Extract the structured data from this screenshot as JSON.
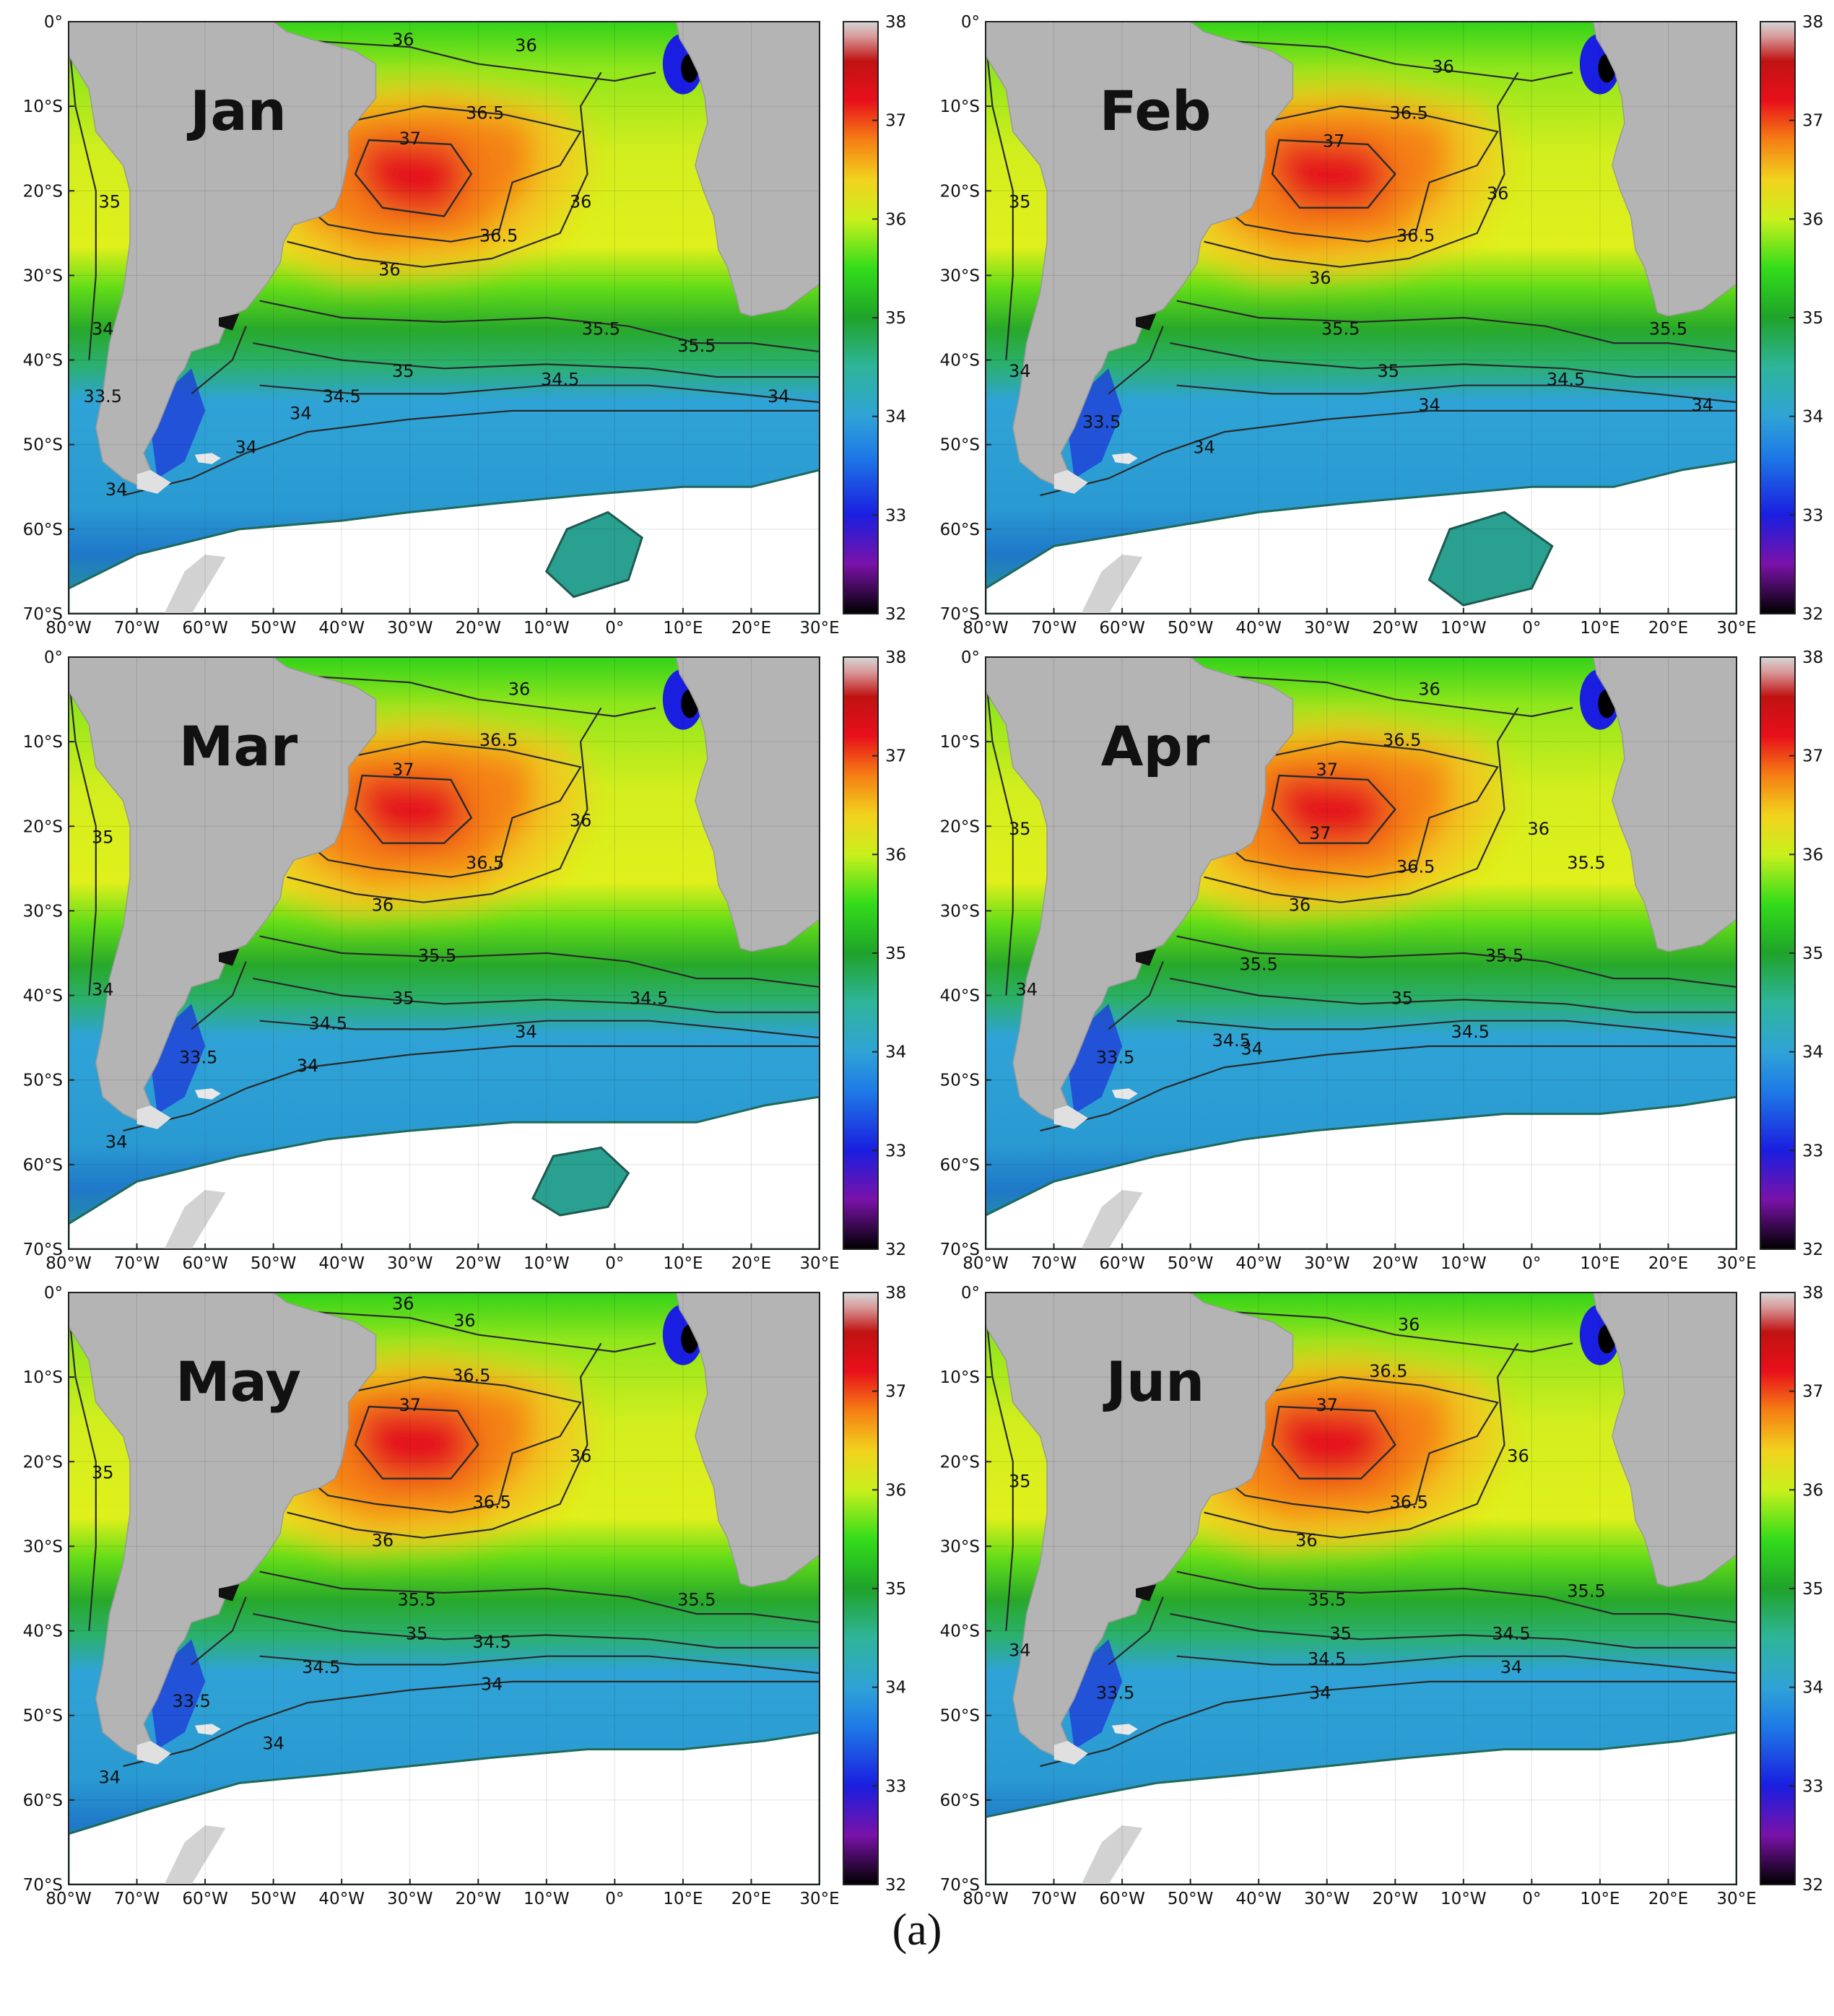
{
  "figure": {
    "caption": "(a)"
  },
  "colorbar": {
    "min": 32,
    "max": 38,
    "tick_labels": [
      "38",
      "37",
      "36",
      "35",
      "34",
      "33",
      "32"
    ],
    "stops": [
      {
        "value": 32.0,
        "color": "#000000"
      },
      {
        "value": 32.5,
        "color": "#7a12a8"
      },
      {
        "value": 33.0,
        "color": "#1a1ee0"
      },
      {
        "value": 33.6,
        "color": "#1e7ae6"
      },
      {
        "value": 34.0,
        "color": "#2fa3d6"
      },
      {
        "value": 34.5,
        "color": "#2fb59a"
      },
      {
        "value": 35.0,
        "color": "#1fa32a"
      },
      {
        "value": 35.5,
        "color": "#33dc1a"
      },
      {
        "value": 36.0,
        "color": "#c9f01d"
      },
      {
        "value": 36.4,
        "color": "#f2d21e"
      },
      {
        "value": 36.8,
        "color": "#f57f14"
      },
      {
        "value": 37.2,
        "color": "#e8101a"
      },
      {
        "value": 37.6,
        "color": "#c01212"
      },
      {
        "value": 37.85,
        "color": "#d89a9a"
      },
      {
        "value": 38.0,
        "color": "#d6d6d6"
      }
    ]
  },
  "axes": {
    "x_tick_labels": [
      "80°W",
      "70°W",
      "60°W",
      "50°W",
      "40°W",
      "30°W",
      "20°W",
      "10°W",
      "0°",
      "10°E",
      "20°E",
      "30°E"
    ],
    "y_tick_labels": [
      "0°",
      "10°S",
      "20°S",
      "30°S",
      "40°S",
      "50°S",
      "60°S",
      "70°S"
    ],
    "lon_range": [
      -80,
      30
    ],
    "lat_range": [
      -70,
      0
    ]
  },
  "colors": {
    "land": "#b4b4b4",
    "sea_ice": "#ffffff",
    "contour": "#2a2a2a",
    "month_label": "#111111"
  },
  "panels": [
    {
      "month": "Jan",
      "core37": [
        [
          -36,
          -14
        ],
        [
          -24,
          -14.5
        ],
        [
          -21,
          -18
        ],
        [
          -25,
          -23
        ],
        [
          -34,
          -22
        ],
        [
          -38,
          -18
        ]
      ],
      "ice": [
        [
          -80,
          -70
        ],
        [
          -80,
          -67
        ],
        [
          -70,
          -63
        ],
        [
          -55,
          -60
        ],
        [
          -40,
          -59
        ],
        [
          -30,
          -58
        ],
        [
          -18,
          -57
        ],
        [
          -5,
          -56
        ],
        [
          10,
          -55
        ],
        [
          20,
          -55
        ],
        [
          30,
          -53
        ],
        [
          30,
          -70
        ]
      ],
      "ice_island": [
        [
          -10,
          -65
        ],
        [
          -7,
          -60
        ],
        [
          -1,
          -58
        ],
        [
          4,
          -61
        ],
        [
          2,
          -66
        ],
        [
          -6,
          -68
        ]
      ],
      "labels": [
        {
          "lon": -31,
          "lat": -2.8,
          "text": "36"
        },
        {
          "lon": -13,
          "lat": -3.5,
          "text": "36"
        },
        {
          "lon": -19,
          "lat": -11.5,
          "text": "36.5"
        },
        {
          "lon": -30,
          "lat": -14.5,
          "text": "37"
        },
        {
          "lon": -74,
          "lat": -22,
          "text": "35"
        },
        {
          "lon": -5,
          "lat": -22,
          "text": "36"
        },
        {
          "lon": -17,
          "lat": -26,
          "text": "36.5"
        },
        {
          "lon": -33,
          "lat": -30,
          "text": "36"
        },
        {
          "lon": -2,
          "lat": -37,
          "text": "35.5"
        },
        {
          "lon": 12,
          "lat": -39,
          "text": "35.5"
        },
        {
          "lon": -31,
          "lat": -42,
          "text": "35"
        },
        {
          "lon": -8,
          "lat": -43,
          "text": "34.5"
        },
        {
          "lon": -40,
          "lat": -45,
          "text": "34.5"
        },
        {
          "lon": -75,
          "lat": -37,
          "text": "34"
        },
        {
          "lon": -46,
          "lat": -47,
          "text": "34"
        },
        {
          "lon": 24,
          "lat": -45,
          "text": "34"
        },
        {
          "lon": -54,
          "lat": -51,
          "text": "34"
        },
        {
          "lon": -73,
          "lat": -56,
          "text": "34"
        },
        {
          "lon": -75,
          "lat": -45,
          "text": "33.5"
        }
      ]
    },
    {
      "month": "Feb",
      "core37": [
        [
          -37,
          -14
        ],
        [
          -24,
          -14.5
        ],
        [
          -20,
          -18
        ],
        [
          -24,
          -22
        ],
        [
          -34,
          -22
        ],
        [
          -38,
          -18
        ]
      ],
      "ice": [
        [
          -80,
          -70
        ],
        [
          -80,
          -67
        ],
        [
          -70,
          -62
        ],
        [
          -55,
          -60
        ],
        [
          -40,
          -58
        ],
        [
          -28,
          -57
        ],
        [
          -14,
          -56
        ],
        [
          0,
          -55
        ],
        [
          12,
          -55
        ],
        [
          22,
          -53
        ],
        [
          30,
          -52
        ],
        [
          30,
          -70
        ]
      ],
      "ice_island": [
        [
          -15,
          -66
        ],
        [
          -12,
          -60
        ],
        [
          -4,
          -58
        ],
        [
          3,
          -62
        ],
        [
          0,
          -67
        ],
        [
          -10,
          -69
        ]
      ],
      "labels": [
        {
          "lon": -13,
          "lat": -6,
          "text": "36"
        },
        {
          "lon": -18,
          "lat": -11.5,
          "text": "36.5"
        },
        {
          "lon": -29,
          "lat": -14.8,
          "text": "37"
        },
        {
          "lon": -75,
          "lat": -22,
          "text": "35"
        },
        {
          "lon": -5,
          "lat": -21,
          "text": "36"
        },
        {
          "lon": -17,
          "lat": -26,
          "text": "36.5"
        },
        {
          "lon": -31,
          "lat": -31,
          "text": "36"
        },
        {
          "lon": -28,
          "lat": -37,
          "text": "35.5"
        },
        {
          "lon": 20,
          "lat": -37,
          "text": "35.5"
        },
        {
          "lon": -21,
          "lat": -42,
          "text": "35"
        },
        {
          "lon": 5,
          "lat": -43,
          "text": "34.5"
        },
        {
          "lon": -15,
          "lat": -46,
          "text": "34"
        },
        {
          "lon": 25,
          "lat": -46,
          "text": "34"
        },
        {
          "lon": -48,
          "lat": -51,
          "text": "34"
        },
        {
          "lon": -75,
          "lat": -42,
          "text": "34"
        },
        {
          "lon": -63,
          "lat": -48,
          "text": "33.5"
        }
      ]
    },
    {
      "month": "Mar",
      "core37": [
        [
          -37,
          -14
        ],
        [
          -24,
          -14.5
        ],
        [
          -21,
          -19
        ],
        [
          -25,
          -22
        ],
        [
          -34,
          -22
        ],
        [
          -38,
          -18
        ]
      ],
      "ice": [
        [
          -80,
          -70
        ],
        [
          -80,
          -67
        ],
        [
          -70,
          -62
        ],
        [
          -55,
          -59
        ],
        [
          -42,
          -57
        ],
        [
          -30,
          -56
        ],
        [
          -15,
          -55
        ],
        [
          0,
          -55
        ],
        [
          12,
          -55
        ],
        [
          22,
          -53
        ],
        [
          30,
          -52
        ],
        [
          30,
          -70
        ]
      ],
      "ice_island": [
        [
          -12,
          -64
        ],
        [
          -9,
          -59
        ],
        [
          -2,
          -58
        ],
        [
          2,
          -61
        ],
        [
          -1,
          -65
        ],
        [
          -8,
          -66
        ]
      ],
      "labels": [
        {
          "lon": -14,
          "lat": -4.5,
          "text": "36"
        },
        {
          "lon": -17,
          "lat": -10.5,
          "text": "36.5"
        },
        {
          "lon": -31,
          "lat": -14,
          "text": "37"
        },
        {
          "lon": -75,
          "lat": -22,
          "text": "35"
        },
        {
          "lon": -5,
          "lat": -20,
          "text": "36"
        },
        {
          "lon": -19,
          "lat": -25,
          "text": "36.5"
        },
        {
          "lon": -34,
          "lat": -30,
          "text": "36"
        },
        {
          "lon": -26,
          "lat": -36,
          "text": "35.5"
        },
        {
          "lon": -31,
          "lat": -41,
          "text": "35"
        },
        {
          "lon": 5,
          "lat": -41,
          "text": "34.5"
        },
        {
          "lon": -42,
          "lat": -44,
          "text": "34.5"
        },
        {
          "lon": -13,
          "lat": -45,
          "text": "34"
        },
        {
          "lon": -45,
          "lat": -49,
          "text": "34"
        },
        {
          "lon": -75,
          "lat": -40,
          "text": "34"
        },
        {
          "lon": -73,
          "lat": -58,
          "text": "34"
        },
        {
          "lon": -61,
          "lat": -48,
          "text": "33.5"
        }
      ]
    },
    {
      "month": "Apr",
      "core37": [
        [
          -37,
          -14
        ],
        [
          -24,
          -14.5
        ],
        [
          -20,
          -18
        ],
        [
          -24,
          -22
        ],
        [
          -34,
          -22
        ],
        [
          -38,
          -18
        ]
      ],
      "ice": [
        [
          -80,
          -70
        ],
        [
          -80,
          -66
        ],
        [
          -70,
          -62
        ],
        [
          -55,
          -59
        ],
        [
          -42,
          -57
        ],
        [
          -32,
          -56
        ],
        [
          -18,
          -55
        ],
        [
          -4,
          -54
        ],
        [
          10,
          -54
        ],
        [
          22,
          -53
        ],
        [
          30,
          -52
        ],
        [
          30,
          -70
        ]
      ],
      "ice_island": [],
      "labels": [
        {
          "lon": -15,
          "lat": -4.5,
          "text": "36"
        },
        {
          "lon": -19,
          "lat": -10.5,
          "text": "36.5"
        },
        {
          "lon": -30,
          "lat": -14,
          "text": "37"
        },
        {
          "lon": -31,
          "lat": -21.5,
          "text": "37"
        },
        {
          "lon": -75,
          "lat": -21,
          "text": "35"
        },
        {
          "lon": 1,
          "lat": -21,
          "text": "36"
        },
        {
          "lon": -17,
          "lat": -25.5,
          "text": "36.5"
        },
        {
          "lon": -34,
          "lat": -30,
          "text": "36"
        },
        {
          "lon": 8,
          "lat": -25,
          "text": "35.5"
        },
        {
          "lon": -4,
          "lat": -36,
          "text": "35.5"
        },
        {
          "lon": -40,
          "lat": -37,
          "text": "35.5"
        },
        {
          "lon": -19,
          "lat": -41,
          "text": "35"
        },
        {
          "lon": -9,
          "lat": -45,
          "text": "34.5"
        },
        {
          "lon": -44,
          "lat": -46,
          "text": "34.5"
        },
        {
          "lon": -41,
          "lat": -47,
          "text": "34"
        },
        {
          "lon": -74,
          "lat": -40,
          "text": "34"
        },
        {
          "lon": -61,
          "lat": -48,
          "text": "33.5"
        }
      ]
    },
    {
      "month": "May",
      "core37": [
        [
          -36,
          -13.5
        ],
        [
          -23,
          -14
        ],
        [
          -20,
          -18
        ],
        [
          -24,
          -22
        ],
        [
          -34,
          -22
        ],
        [
          -38,
          -18
        ]
      ],
      "ice": [
        [
          -80,
          -70
        ],
        [
          -80,
          -64
        ],
        [
          -68,
          -61
        ],
        [
          -55,
          -58
        ],
        [
          -42,
          -57
        ],
        [
          -30,
          -56
        ],
        [
          -18,
          -55
        ],
        [
          -4,
          -54
        ],
        [
          10,
          -54
        ],
        [
          22,
          -53
        ],
        [
          30,
          -52
        ],
        [
          30,
          -70
        ]
      ],
      "ice_island": [],
      "labels": [
        {
          "lon": -31,
          "lat": -2,
          "text": "36"
        },
        {
          "lon": -22,
          "lat": -4,
          "text": "36"
        },
        {
          "lon": -21,
          "lat": -10.5,
          "text": "36.5"
        },
        {
          "lon": -30,
          "lat": -14,
          "text": "37"
        },
        {
          "lon": -75,
          "lat": -22,
          "text": "35"
        },
        {
          "lon": -5,
          "lat": -20,
          "text": "36"
        },
        {
          "lon": -18,
          "lat": -25.5,
          "text": "36.5"
        },
        {
          "lon": -34,
          "lat": -30,
          "text": "36"
        },
        {
          "lon": -29,
          "lat": -37,
          "text": "35.5"
        },
        {
          "lon": 12,
          "lat": -37,
          "text": "35.5"
        },
        {
          "lon": -29,
          "lat": -41,
          "text": "35"
        },
        {
          "lon": -18,
          "lat": -42,
          "text": "34.5"
        },
        {
          "lon": -43,
          "lat": -45,
          "text": "34.5"
        },
        {
          "lon": -18,
          "lat": -47,
          "text": "34"
        },
        {
          "lon": -50,
          "lat": -54,
          "text": "34"
        },
        {
          "lon": -74,
          "lat": -58,
          "text": "34"
        },
        {
          "lon": -62,
          "lat": -49,
          "text": "33.5"
        }
      ]
    },
    {
      "month": "Jun",
      "core37": [
        [
          -37,
          -13.5
        ],
        [
          -23,
          -14
        ],
        [
          -20,
          -18
        ],
        [
          -25,
          -22
        ],
        [
          -34,
          -22
        ],
        [
          -38,
          -18
        ]
      ],
      "ice": [
        [
          -80,
          -70
        ],
        [
          -80,
          -62
        ],
        [
          -68,
          -60
        ],
        [
          -55,
          -58
        ],
        [
          -42,
          -57
        ],
        [
          -30,
          -56
        ],
        [
          -18,
          -55
        ],
        [
          -4,
          -54
        ],
        [
          10,
          -54
        ],
        [
          22,
          -53
        ],
        [
          30,
          -52
        ],
        [
          30,
          -70
        ]
      ],
      "ice_island": [],
      "labels": [
        {
          "lon": -18,
          "lat": -4.5,
          "text": "36"
        },
        {
          "lon": -21,
          "lat": -10,
          "text": "36.5"
        },
        {
          "lon": -30,
          "lat": -14,
          "text": "37"
        },
        {
          "lon": -75,
          "lat": -23,
          "text": "35"
        },
        {
          "lon": -2,
          "lat": -20,
          "text": "36"
        },
        {
          "lon": -18,
          "lat": -25.5,
          "text": "36.5"
        },
        {
          "lon": -33,
          "lat": -30,
          "text": "36"
        },
        {
          "lon": -30,
          "lat": -37,
          "text": "35.5"
        },
        {
          "lon": 8,
          "lat": -36,
          "text": "35.5"
        },
        {
          "lon": -28,
          "lat": -41,
          "text": "35"
        },
        {
          "lon": -3,
          "lat": -41,
          "text": "34.5"
        },
        {
          "lon": -30,
          "lat": -44,
          "text": "34.5"
        },
        {
          "lon": -3,
          "lat": -45,
          "text": "34"
        },
        {
          "lon": -31,
          "lat": -48,
          "text": "34"
        },
        {
          "lon": -75,
          "lat": -43,
          "text": "34"
        },
        {
          "lon": -61,
          "lat": -48,
          "text": "33.5"
        }
      ]
    }
  ]
}
